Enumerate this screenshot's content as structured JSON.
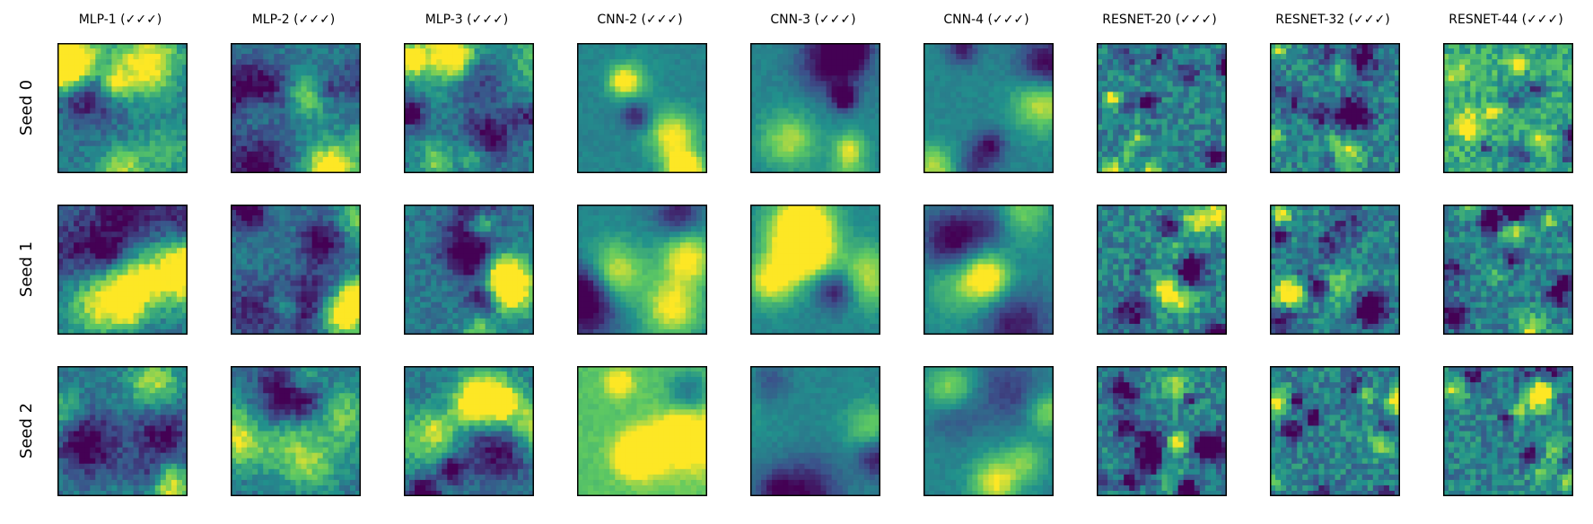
{
  "chart_data": {
    "type": "heatmap",
    "title": "",
    "columns": [
      "MLP-1 (✓✓✓)",
      "MLP-2 (✓✓✓)",
      "MLP-3 (✓✓✓)",
      "CNN-2 (✓✓✓)",
      "CNN-3 (✓✓✓)",
      "CNN-4 (✓✓✓)",
      "RESNET-20 (✓✓✓)",
      "RESNET-32 (✓✓✓)",
      "RESNET-44 (✓✓✓)"
    ],
    "rows": [
      "Seed 0",
      "Seed 1",
      "Seed 2"
    ],
    "colormap": [
      "#440154",
      "#3b528b",
      "#21918c",
      "#5ec962",
      "#fde725"
    ],
    "grid": false,
    "axes_ticks": false
  }
}
